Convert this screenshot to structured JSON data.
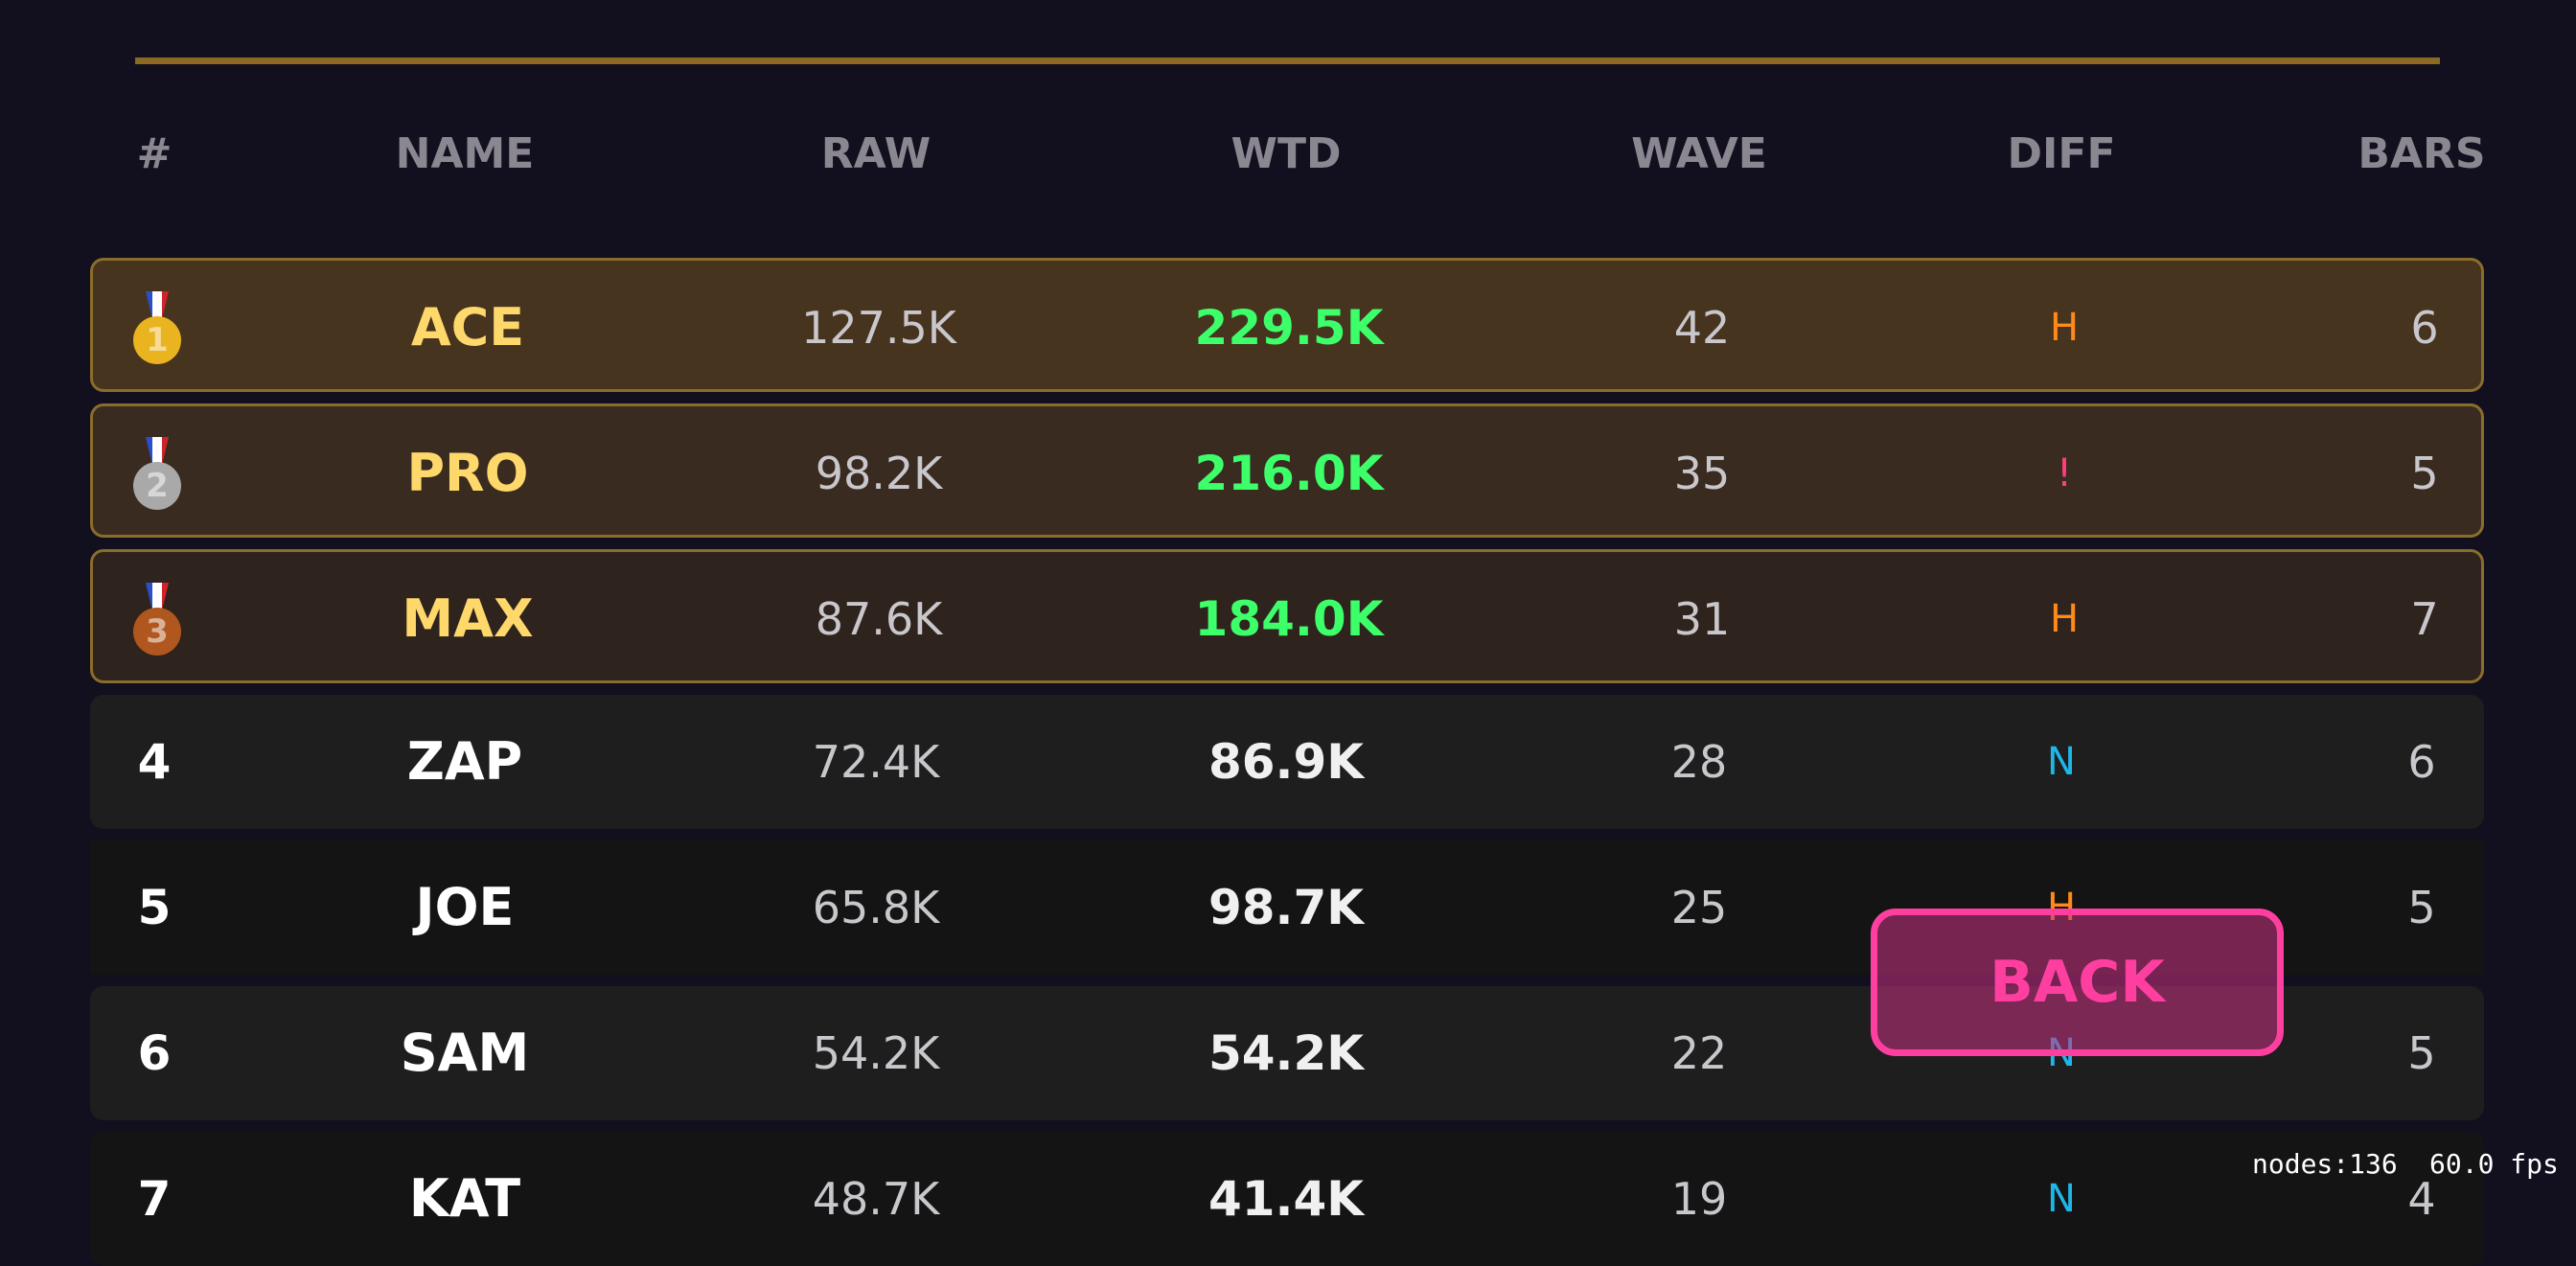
{
  "header": {
    "columns": [
      "#",
      "NAME",
      "RAW",
      "WTD",
      "WAVE",
      "DIFF",
      "BARS"
    ]
  },
  "rows": [
    {
      "rank": "1",
      "name": "ACE",
      "raw": "127.5K",
      "wtd": "229.5K",
      "wave": "42",
      "diff": "H",
      "diff_color": "#ff8a1a",
      "bars": "6"
    },
    {
      "rank": "2",
      "name": "PRO",
      "raw": "98.2K",
      "wtd": "216.0K",
      "wave": "35",
      "diff": "!",
      "diff_color": "#ff3d7f",
      "bars": "5"
    },
    {
      "rank": "3",
      "name": "MAX",
      "raw": "87.6K",
      "wtd": "184.0K",
      "wave": "31",
      "diff": "H",
      "diff_color": "#ff8a1a",
      "bars": "7"
    },
    {
      "rank": "4",
      "name": "ZAP",
      "raw": "72.4K",
      "wtd": "86.9K",
      "wave": "28",
      "diff": "N",
      "diff_color": "#1fb6e8",
      "bars": "6"
    },
    {
      "rank": "5",
      "name": "JOE",
      "raw": "65.8K",
      "wtd": "98.7K",
      "wave": "25",
      "diff": "H",
      "diff_color": "#ff8a1a",
      "bars": "5"
    },
    {
      "rank": "6",
      "name": "SAM",
      "raw": "54.2K",
      "wtd": "54.2K",
      "wave": "22",
      "diff": "N",
      "diff_color": "#1fb6e8",
      "bars": "5"
    },
    {
      "rank": "7",
      "name": "KAT",
      "raw": "48.7K",
      "wtd": "41.4K",
      "wave": "19",
      "diff": "N",
      "diff_color": "#1fb6e8",
      "bars": "4"
    }
  ],
  "button": {
    "label": "BACK"
  },
  "debug": {
    "nodes": "nodes:136",
    "fps": "60.0 fps"
  }
}
